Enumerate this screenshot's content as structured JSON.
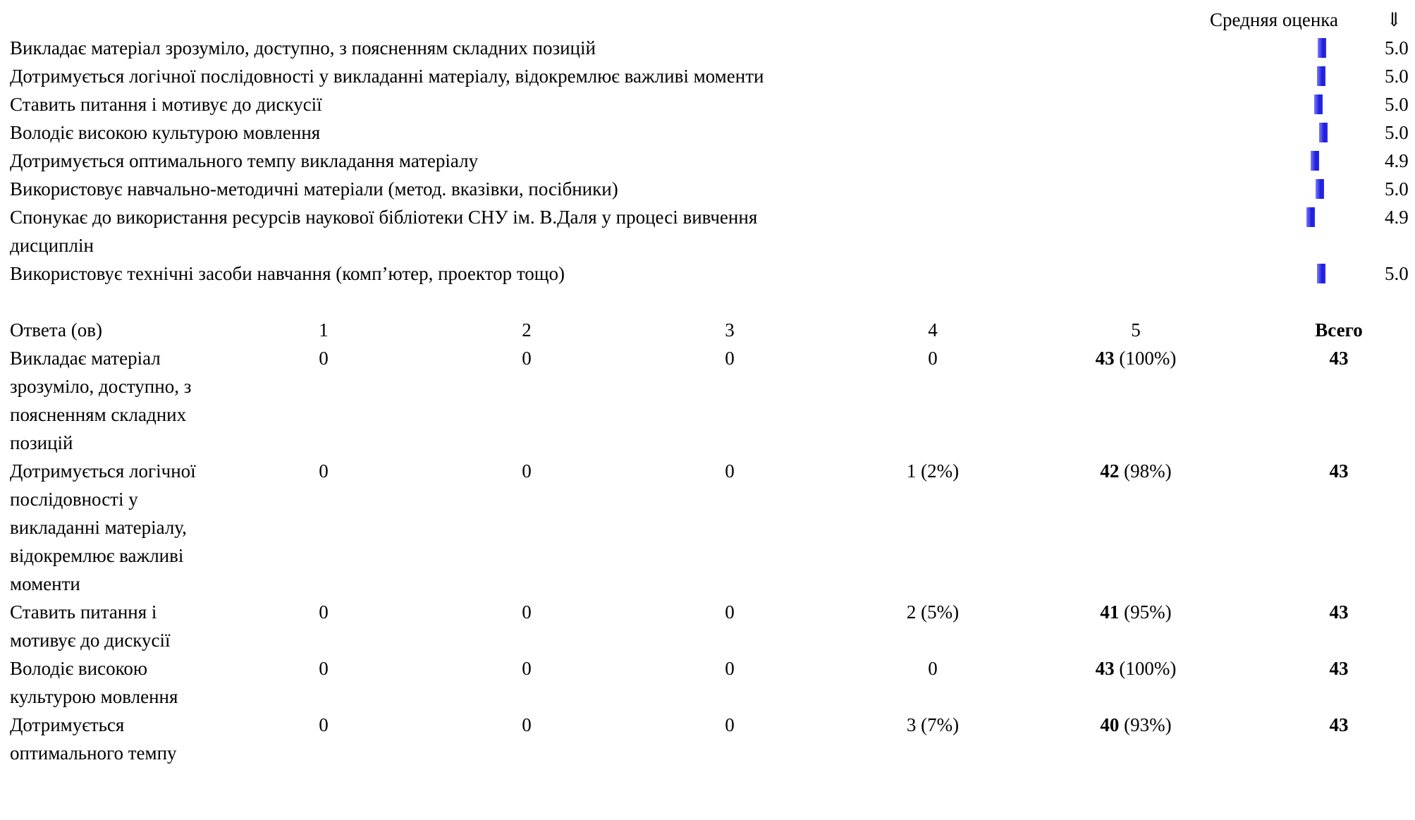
{
  "summary": {
    "header_label": "Средняя оценка",
    "sort_glyph": "⇓",
    "rows": [
      {
        "question": "Викладає матеріал зрозуміло, доступно, з поясненням складних позицій",
        "avg": "5.0"
      },
      {
        "question": "Дотримується логічної послідовності у викладанні матеріалу, відокремлює важливі моменти",
        "avg": "5.0"
      },
      {
        "question": "Ставить питання і мотивує до дискусії",
        "avg": "5.0"
      },
      {
        "question": "Володіє високою культурою мовлення",
        "avg": "5.0"
      },
      {
        "question": "Дотримується оптимального темпу викладання матеріалу",
        "avg": "4.9"
      },
      {
        "question": "Використовує навчально-методичні матеріали (метод. вказівки, посібники)",
        "avg": "5.0"
      },
      {
        "question": "Спонукає до використання ресурсів наукової бібліотеки СНУ ім. В.Даля у процесі вивчення дисциплін",
        "avg": "4.9"
      },
      {
        "question": "Використовує технічні засоби навчання (комп’ютер, проектор тощо)",
        "avg": "5.0"
      }
    ]
  },
  "distribution": {
    "headers": [
      "Ответа (ов)",
      "1",
      "2",
      "3",
      "4",
      "5",
      "Всего"
    ],
    "rows": [
      {
        "question": "Викладає матеріал зрозуміло, доступно, з поясненням складних позицій",
        "c1": "0",
        "c2": "0",
        "c3": "0",
        "c4": "0",
        "c5_count": "43",
        "c5_pct": "(100%)",
        "total": "43"
      },
      {
        "question": "Дотримується логічної послідовності у викладанні матеріалу, відокремлює важливі моменти",
        "c1": "0",
        "c2": "0",
        "c3": "0",
        "c4": "1 (2%)",
        "c5_count": "42",
        "c5_pct": "(98%)",
        "total": "43"
      },
      {
        "question": "Ставить питання і мотивує до дискусії",
        "c1": "0",
        "c2": "0",
        "c3": "0",
        "c4": "2 (5%)",
        "c5_count": "41",
        "c5_pct": "(95%)",
        "total": "43"
      },
      {
        "question": "Володіє високою культурою мовлення",
        "c1": "0",
        "c2": "0",
        "c3": "0",
        "c4": "0",
        "c5_count": "43",
        "c5_pct": "(100%)",
        "total": "43"
      },
      {
        "question": "Дотримується оптимального темпу",
        "c1": "0",
        "c2": "0",
        "c3": "0",
        "c4": "3 (7%)",
        "c5_count": "40",
        "c5_pct": "(93%)",
        "total": "43"
      }
    ]
  }
}
